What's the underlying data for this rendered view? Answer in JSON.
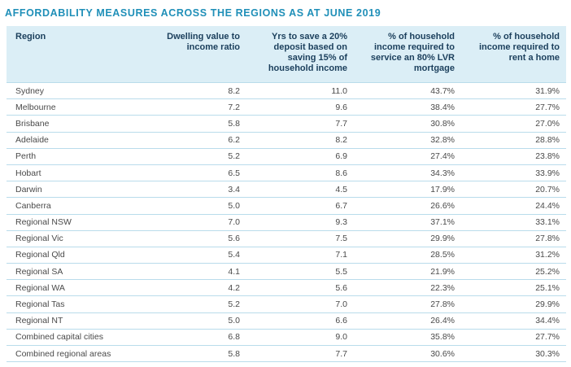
{
  "title": "AFFORDABILITY MEASURES ACROSS THE REGIONS AS AT JUNE 2019",
  "headers": [
    "Region",
    "Dwelling value to income ratio",
    "Yrs to save a 20% deposit based on saving 15% of household income",
    "% of household income required to service an 80% LVR mortgage",
    "% of household income required to rent a home"
  ],
  "rows": [
    [
      "Sydney",
      "8.2",
      "11.0",
      "43.7%",
      "31.9%"
    ],
    [
      "Melbourne",
      "7.2",
      "9.6",
      "38.4%",
      "27.7%"
    ],
    [
      "Brisbane",
      "5.8",
      "7.7",
      "30.8%",
      "27.0%"
    ],
    [
      "Adelaide",
      "6.2",
      "8.2",
      "32.8%",
      "28.8%"
    ],
    [
      "Perth",
      "5.2",
      "6.9",
      "27.4%",
      "23.8%"
    ],
    [
      "Hobart",
      "6.5",
      "8.6",
      "34.3%",
      "33.9%"
    ],
    [
      "Darwin",
      "3.4",
      "4.5",
      "17.9%",
      "20.7%"
    ],
    [
      "Canberra",
      "5.0",
      "6.7",
      "26.6%",
      "24.4%"
    ],
    [
      "Regional NSW",
      "7.0",
      "9.3",
      "37.1%",
      "33.1%"
    ],
    [
      "Regional Vic",
      "5.6",
      "7.5",
      "29.9%",
      "27.8%"
    ],
    [
      "Regional Qld",
      "5.4",
      "7.1",
      "28.5%",
      "31.2%"
    ],
    [
      "Regional SA",
      "4.1",
      "5.5",
      "21.9%",
      "25.2%"
    ],
    [
      "Regional WA",
      "4.2",
      "5.6",
      "22.3%",
      "25.1%"
    ],
    [
      "Regional Tas",
      "5.2",
      "7.0",
      "27.8%",
      "29.9%"
    ],
    [
      "Regional NT",
      "5.0",
      "6.6",
      "26.4%",
      "34.4%"
    ],
    [
      "Combined capital cities",
      "6.8",
      "9.0",
      "35.8%",
      "27.7%"
    ],
    [
      "Combined regional areas",
      "5.8",
      "7.7",
      "30.6%",
      "30.3%"
    ]
  ],
  "colors": {
    "title": "#1f8fb8",
    "header_bg": "#dbeef6",
    "header_text": "#1b3f5c",
    "row_rule": "#b9dceb"
  }
}
